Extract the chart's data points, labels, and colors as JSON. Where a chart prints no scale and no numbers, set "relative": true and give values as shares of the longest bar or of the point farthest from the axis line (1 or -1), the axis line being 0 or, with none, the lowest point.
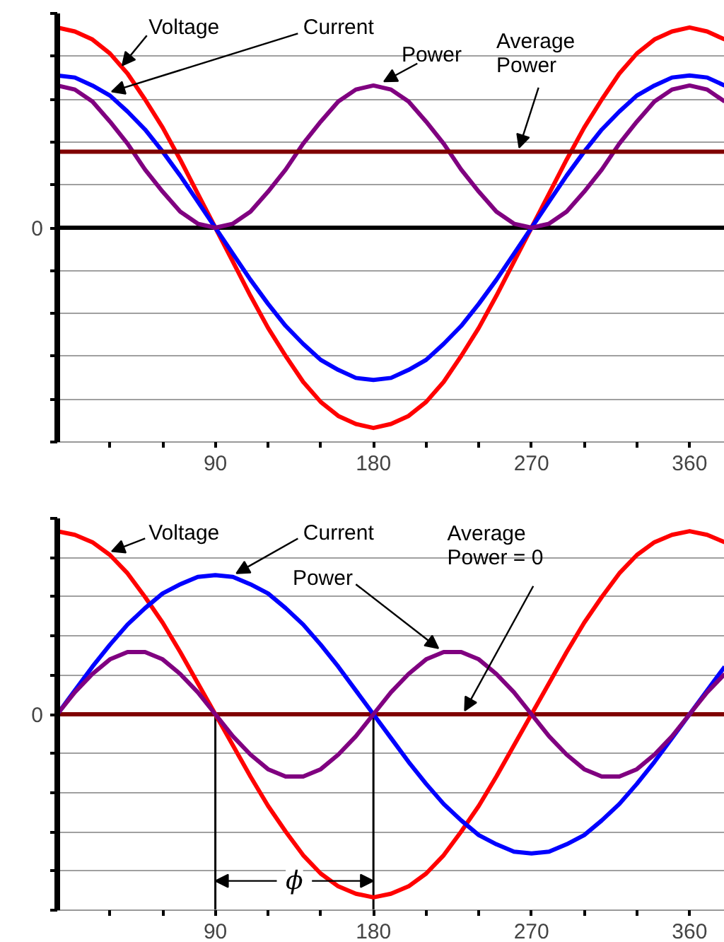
{
  "chart_data": [
    {
      "type": "line",
      "relative": true,
      "grid": "y",
      "xlim": [
        0,
        380
      ],
      "xticks": [
        {
          "value": 30,
          "label": null
        },
        {
          "value": 60,
          "label": null
        },
        90,
        {
          "value": 120,
          "label": null
        },
        {
          "value": 150,
          "label": null
        },
        180,
        {
          "value": 210,
          "label": null
        },
        {
          "value": 240,
          "label": null
        },
        270,
        {
          "value": 300,
          "label": null
        },
        {
          "value": 330,
          "label": null
        },
        360
      ],
      "x": [
        0,
        10,
        20,
        30,
        40,
        50,
        60,
        70,
        80,
        90,
        100,
        110,
        120,
        130,
        140,
        150,
        160,
        170,
        180,
        190,
        200,
        210,
        220,
        230,
        240,
        250,
        260,
        270,
        280,
        290,
        300,
        310,
        320,
        330,
        340,
        350,
        360,
        370,
        380
      ],
      "ref_lines": [
        {
          "axis": "y",
          "value": 0,
          "label": "0",
          "color": "#000000"
        }
      ],
      "series": [
        {
          "name": "Voltage",
          "color": "#ff0000",
          "values": [
            1,
            0.98,
            0.94,
            0.87,
            0.77,
            0.64,
            0.5,
            0.34,
            0.17,
            0,
            -0.17,
            -0.34,
            -0.5,
            -0.64,
            -0.77,
            -0.87,
            -0.94,
            -0.98,
            -1,
            -0.98,
            -0.94,
            -0.87,
            -0.77,
            -0.64,
            -0.5,
            -0.34,
            -0.17,
            0,
            0.17,
            0.34,
            0.5,
            0.64,
            0.77,
            0.87,
            0.94,
            0.98,
            1,
            0.98,
            0.94
          ]
        },
        {
          "name": "Current",
          "color": "#0000ff",
          "values": [
            0.76,
            0.75,
            0.71,
            0.66,
            0.58,
            0.49,
            0.38,
            0.26,
            0.13,
            0,
            -0.13,
            -0.26,
            -0.38,
            -0.49,
            -0.58,
            -0.66,
            -0.71,
            -0.75,
            -0.76,
            -0.75,
            -0.71,
            -0.66,
            -0.58,
            -0.49,
            -0.38,
            -0.26,
            -0.13,
            0,
            0.13,
            0.26,
            0.38,
            0.49,
            0.58,
            0.66,
            0.71,
            0.75,
            0.76,
            0.75,
            0.71
          ]
        },
        {
          "name": "Power",
          "color": "#800080",
          "values": [
            0.71,
            0.69,
            0.63,
            0.53,
            0.42,
            0.29,
            0.18,
            0.08,
            0.02,
            0,
            0.02,
            0.08,
            0.18,
            0.29,
            0.42,
            0.53,
            0.63,
            0.69,
            0.71,
            0.69,
            0.63,
            0.53,
            0.42,
            0.29,
            0.18,
            0.08,
            0.02,
            0,
            0.02,
            0.08,
            0.18,
            0.29,
            0.42,
            0.53,
            0.63,
            0.69,
            0.71,
            0.69,
            0.63
          ]
        },
        {
          "name": "Average\nPower",
          "color": "#800000",
          "values": [
            0.38,
            0.38,
            0.38,
            0.38,
            0.38,
            0.38,
            0.38,
            0.38,
            0.38,
            0.38,
            0.38,
            0.38,
            0.38,
            0.38,
            0.38,
            0.38,
            0.38,
            0.38,
            0.38,
            0.38,
            0.38,
            0.38,
            0.38,
            0.38,
            0.38,
            0.38,
            0.38,
            0.38,
            0.38,
            0.38,
            0.38,
            0.38,
            0.38,
            0.38,
            0.38,
            0.38,
            0.38,
            0.38,
            0.38
          ]
        }
      ]
    },
    {
      "type": "line",
      "relative": true,
      "grid": "y",
      "xlim": [
        0,
        380
      ],
      "xticks": [
        {
          "value": 30,
          "label": null
        },
        {
          "value": 60,
          "label": null
        },
        90,
        {
          "value": 120,
          "label": null
        },
        {
          "value": 150,
          "label": null
        },
        180,
        {
          "value": 210,
          "label": null
        },
        {
          "value": 240,
          "label": null
        },
        270,
        {
          "value": 300,
          "label": null
        },
        {
          "value": 330,
          "label": null
        },
        360
      ],
      "x": [
        0,
        10,
        20,
        30,
        40,
        50,
        60,
        70,
        80,
        90,
        100,
        110,
        120,
        130,
        140,
        150,
        160,
        170,
        180,
        190,
        200,
        210,
        220,
        230,
        240,
        250,
        260,
        270,
        280,
        290,
        300,
        310,
        320,
        330,
        340,
        350,
        360,
        370,
        380
      ],
      "ref_lines": [
        {
          "axis": "y",
          "value": 0,
          "label": "0",
          "color": "#800000"
        },
        {
          "axis": "x",
          "value": 90,
          "color": "#000000"
        },
        {
          "axis": "x",
          "value": 180,
          "color": "#000000"
        }
      ],
      "annotations": [
        {
          "text": "Average\nPower = 0",
          "x": 232,
          "y": 0
        },
        {
          "text": "ϕ",
          "x": 135,
          "y": -0.91
        }
      ],
      "series": [
        {
          "name": "Voltage",
          "color": "#ff0000",
          "values": [
            1,
            0.98,
            0.94,
            0.87,
            0.77,
            0.64,
            0.5,
            0.34,
            0.17,
            0,
            -0.17,
            -0.34,
            -0.5,
            -0.64,
            -0.77,
            -0.87,
            -0.94,
            -0.98,
            -1,
            -0.98,
            -0.94,
            -0.87,
            -0.77,
            -0.64,
            -0.5,
            -0.34,
            -0.17,
            0,
            0.17,
            0.34,
            0.5,
            0.64,
            0.77,
            0.87,
            0.94,
            0.98,
            1,
            0.98,
            0.94
          ]
        },
        {
          "name": "Current",
          "color": "#0000ff",
          "values": [
            0,
            0.13,
            0.26,
            0.38,
            0.49,
            0.58,
            0.66,
            0.71,
            0.75,
            0.76,
            0.75,
            0.71,
            0.66,
            0.58,
            0.49,
            0.38,
            0.26,
            0.13,
            0,
            -0.13,
            -0.26,
            -0.38,
            -0.49,
            -0.58,
            -0.66,
            -0.71,
            -0.75,
            -0.76,
            -0.75,
            -0.71,
            -0.66,
            -0.58,
            -0.49,
            -0.38,
            -0.26,
            -0.13,
            0,
            0.13,
            0.26
          ]
        },
        {
          "name": "Power",
          "color": "#800080",
          "values": [
            0,
            0.12,
            0.22,
            0.3,
            0.34,
            0.34,
            0.3,
            0.22,
            0.12,
            0,
            -0.12,
            -0.22,
            -0.3,
            -0.34,
            -0.34,
            -0.3,
            -0.22,
            -0.12,
            0,
            0.12,
            0.22,
            0.3,
            0.34,
            0.34,
            0.3,
            0.22,
            0.12,
            0,
            -0.12,
            -0.22,
            -0.3,
            -0.34,
            -0.34,
            -0.3,
            -0.22,
            -0.12,
            0,
            0.12,
            0.22
          ]
        }
      ]
    }
  ]
}
